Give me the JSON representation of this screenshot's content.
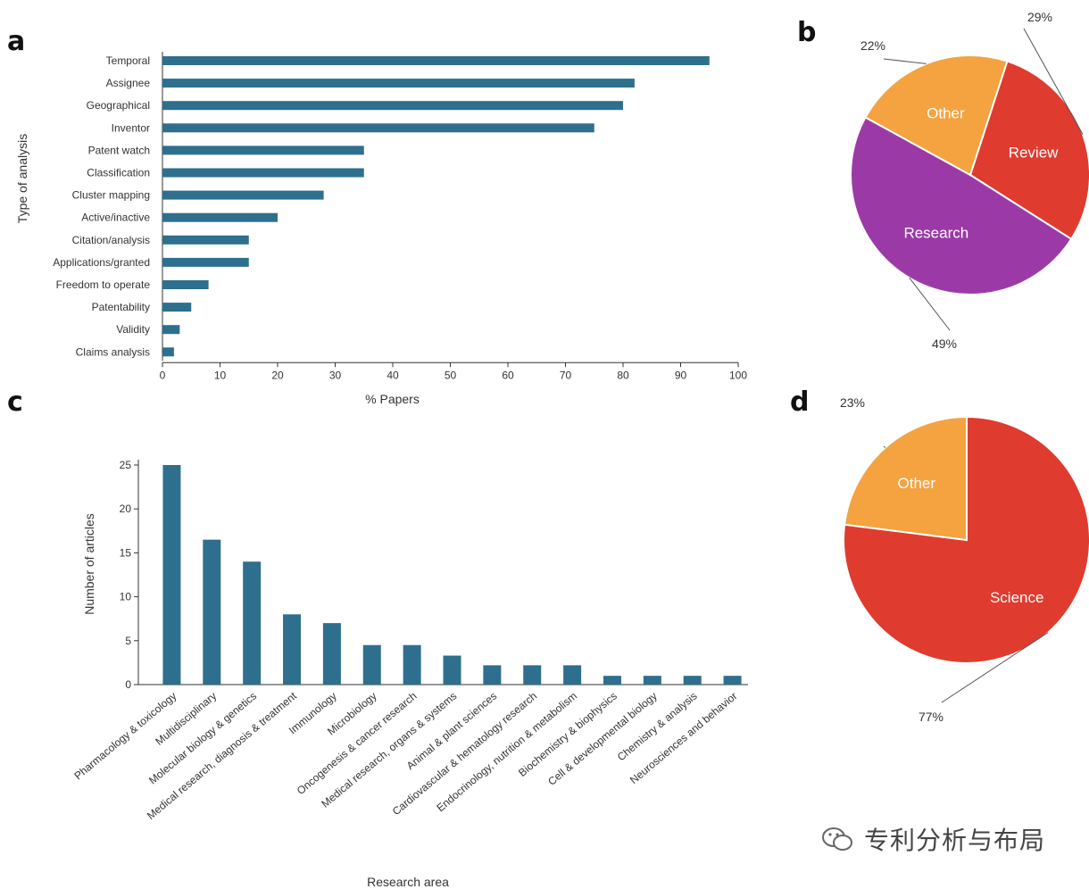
{
  "panels": {
    "a": "a",
    "b": "b",
    "c": "c",
    "d": "d"
  },
  "watermark": {
    "text": "专利分析与布局"
  },
  "colors": {
    "bar": "#2e6f8e",
    "orange": "#f4a340",
    "red": "#df3b2f",
    "purple": "#9b3aa7"
  },
  "chart_data": [
    {
      "type": "bar",
      "orientation": "horizontal",
      "panel": "a",
      "categories": [
        "Temporal",
        "Assignee",
        "Geographical",
        "Inventor",
        "Patent watch",
        "Classification",
        "Cluster mapping",
        "Active/inactive",
        "Citation/analysis",
        "Applications/granted",
        "Freedom to operate",
        "Patentability",
        "Validity",
        "Claims analysis"
      ],
      "values": [
        95,
        82,
        80,
        75,
        35,
        35,
        28,
        20,
        15,
        15,
        8,
        5,
        3,
        2
      ],
      "xlabel": "% Papers",
      "ylabel": "Type of analysis",
      "xlim": [
        0,
        100
      ],
      "xticks": [
        0,
        10,
        20,
        30,
        40,
        50,
        60,
        70,
        80,
        90,
        100
      ]
    },
    {
      "type": "pie",
      "panel": "b",
      "slices": [
        {
          "label": "Review",
          "value": 29,
          "pct": "29%",
          "color": "#df3b2f"
        },
        {
          "label": "Research",
          "value": 49,
          "pct": "49%",
          "color": "#9b3aa7"
        },
        {
          "label": "Other",
          "value": 22,
          "pct": "22%",
          "color": "#f4a340"
        }
      ]
    },
    {
      "type": "bar",
      "panel": "c",
      "categories": [
        "Pharmacology & toxicology",
        "Multidisciplinary",
        "Molecular biology & genetics",
        "Medical research, diagnosis & treatment",
        "Immunology",
        "Microbiology",
        "Oncogenesis & cancer research",
        "Medical research, organs & systems",
        "Animal & plant sciences",
        "Cardiovascular & hematology research",
        "Endocrinology, nutrition & metabolism",
        "Biochemistry & biophysics",
        "Cell & developmental biology",
        "Chemistry & analysis",
        "Neurosciences and behavior"
      ],
      "values": [
        25,
        16.5,
        14,
        8,
        7,
        4.5,
        4.5,
        3.3,
        2.2,
        2.2,
        2.2,
        1,
        1,
        1,
        1
      ],
      "xlabel": "Research area",
      "ylabel": "Number of articles",
      "ylim": [
        0,
        25
      ],
      "yticks": [
        0,
        5,
        10,
        15,
        20,
        25
      ]
    },
    {
      "type": "pie",
      "panel": "d",
      "slices": [
        {
          "label": "Science",
          "value": 77,
          "pct": "77%",
          "color": "#df3b2f"
        },
        {
          "label": "Other",
          "value": 23,
          "pct": "23%",
          "color": "#f4a340"
        }
      ]
    }
  ]
}
